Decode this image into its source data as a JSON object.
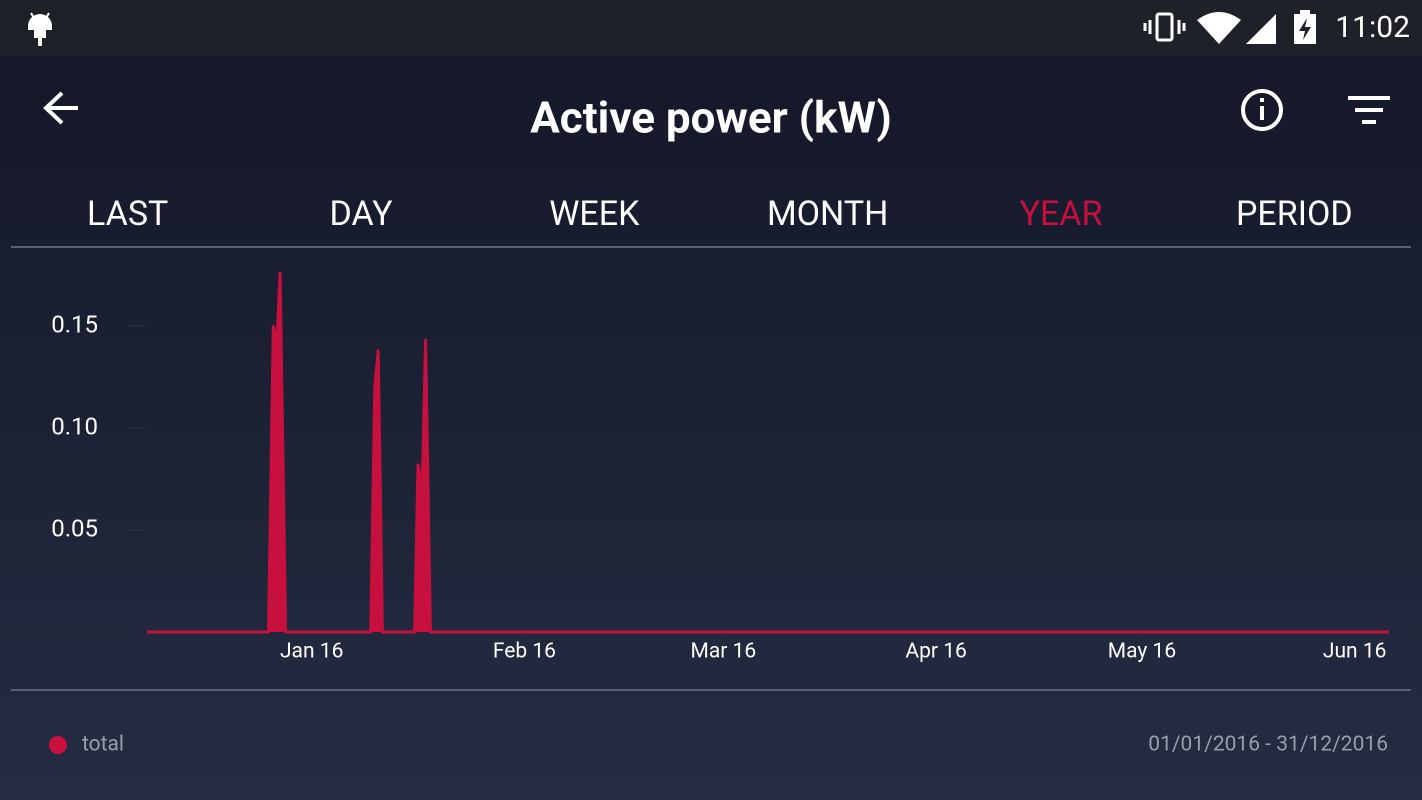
{
  "status_bar": {
    "time": "11:02"
  },
  "header": {
    "title": "Active power (kW)"
  },
  "tabs": {
    "items": [
      "LAST",
      "DAY",
      "WEEK",
      "MONTH",
      "YEAR",
      "PERIOD"
    ],
    "active": 4,
    "active_color": "#c8103e"
  },
  "chart_data": {
    "type": "line",
    "x": [
      -24,
      -6.3,
      -5.6,
      -5.1,
      -4.6,
      -3.8,
      8.6,
      9.2,
      9.7,
      10.3,
      15.0,
      15.5,
      16.1,
      16.6,
      17.3,
      157
    ],
    "series": [
      {
        "name": "total",
        "color": "#c8103e",
        "values": [
          0,
          0,
          0.15,
          0.14,
          0.176,
          0,
          0,
          0.12,
          0.138,
          0,
          0,
          0.082,
          0.07,
          0.143,
          0,
          0
        ]
      }
    ],
    "xlim": [
      -24,
      157
    ],
    "xticks": [
      {
        "value": 0,
        "label": "Jan 16"
      },
      {
        "value": 31,
        "label": "Feb 16"
      },
      {
        "value": 60,
        "label": "Mar 16"
      },
      {
        "value": 91,
        "label": "Apr 16"
      },
      {
        "value": 121,
        "label": "May 16"
      },
      {
        "value": 152,
        "label": "Jun 16"
      }
    ],
    "ylim": [
      0,
      0.18
    ],
    "yticks": [
      0.05,
      {
        "value": 0.1,
        "label": "0.10"
      },
      0.15
    ]
  },
  "footer": {
    "date_range": "01/01/2016 - 31/12/2016"
  }
}
